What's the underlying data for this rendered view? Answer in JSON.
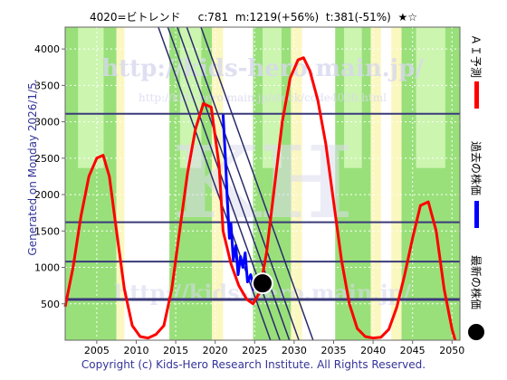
{
  "header": {
    "code_name": "4020=ビトレンド",
    "c_value": "c:781",
    "m_value": "m:1219(+56%)",
    "t_value": "t:381(-51%)",
    "stars": "★☆"
  },
  "generated_label": "Generated on Monday 2026/1/5.",
  "copyright": "Copyright (c) Kids-Hero Research Institute. All Rights Reserved.",
  "watermarks": {
    "main": "http://kids-hero.main.jp/",
    "sub": "http://kids-hero.main.jp/stock/code4020.html",
    "big": "KH"
  },
  "legend": {
    "ai_forecast": "ＡＩ予測",
    "past_price": "過去の株価",
    "latest_price": "最新の株価"
  },
  "colors": {
    "forecast": "#ff0000",
    "past": "#0000ff",
    "latest": "#000000",
    "band_green": "#99e07a",
    "band_light_green": "#ccf5b0",
    "band_yellow": "#fbf7c0",
    "trend_line": "#2a2a6a",
    "h_line": "#3a3a7a",
    "text_blue": "#333399"
  },
  "chart_data": {
    "type": "line",
    "xlim": [
      2001,
      2051
    ],
    "ylim": [
      0,
      4300
    ],
    "x_ticks": [
      2005,
      2010,
      2015,
      2020,
      2025,
      2030,
      2035,
      2040,
      2045,
      2050
    ],
    "y_ticks": [
      500,
      1000,
      1500,
      2000,
      2500,
      3000,
      3500,
      4000
    ],
    "horizontal_lines": [
      3110,
      1620,
      1080,
      560
    ],
    "latest_point": {
      "x": 2026.0,
      "y": 781
    },
    "trend_lines": [
      {
        "x": [
          2012.8,
          2027.0
        ],
        "y": [
          4300,
          0
        ]
      },
      {
        "x": [
          2014.0,
          2028.2
        ],
        "y": [
          4300,
          0
        ]
      },
      {
        "x": [
          2015.2,
          2029.4
        ],
        "y": [
          4300,
          0
        ]
      },
      {
        "x": [
          2016.4,
          2030.6
        ],
        "y": [
          4300,
          0
        ]
      },
      {
        "x": [
          2018.2,
          2032.4
        ],
        "y": [
          4300,
          0
        ]
      }
    ],
    "green_bands": [
      [
        2001,
        2007.5
      ],
      [
        2014.2,
        2019.6
      ],
      [
        2024.8,
        2029.6
      ],
      [
        2035.2,
        2039.7
      ],
      [
        2043.6,
        2051
      ]
    ],
    "yellow_bands": [
      [
        2007.5,
        2008.5
      ],
      [
        2019.6,
        2021.0
      ],
      [
        2029.6,
        2031.0
      ],
      [
        2039.7,
        2041.0
      ],
      [
        2042.3,
        2043.6
      ]
    ],
    "series": [
      {
        "name": "ＡＩ予測",
        "x": [
          2001,
          2002,
          2003,
          2004,
          2005,
          2005.8,
          2006.6,
          2007.5,
          2008.5,
          2009.5,
          2010.5,
          2011.5,
          2012.5,
          2013.5,
          2014.5,
          2015.5,
          2016.5,
          2017.5,
          2018.5,
          2019.5,
          2020.5,
          2021.0,
          2022.0,
          2023.0,
          2024.0,
          2024.8,
          2025.6,
          2026.5,
          2027.5,
          2028.5,
          2029.5,
          2030.5,
          2031.2,
          2032.0,
          2033.0,
          2034.0,
          2035.0,
          2036.0,
          2037.0,
          2038.0,
          2039.0,
          2040.0,
          2041.0,
          2042.0,
          2043.0,
          2044.0,
          2045.0,
          2046.0,
          2047.0,
          2048.0,
          2049.0,
          2050.0,
          2050.4
        ],
        "y": [
          460,
          1000,
          1700,
          2250,
          2500,
          2540,
          2250,
          1500,
          700,
          200,
          50,
          30,
          80,
          200,
          700,
          1500,
          2300,
          2900,
          3250,
          3200,
          2400,
          1500,
          1050,
          750,
          560,
          500,
          650,
          1200,
          2100,
          3000,
          3600,
          3850,
          3880,
          3700,
          3300,
          2700,
          1900,
          1100,
          500,
          160,
          50,
          30,
          40,
          150,
          450,
          900,
          1400,
          1850,
          1900,
          1500,
          700,
          150,
          0
        ]
      },
      {
        "name": "過去の株価",
        "x": [
          2021.0,
          2021.3,
          2021.5,
          2021.8,
          2022.0,
          2022.3,
          2022.6,
          2022.9,
          2023.2,
          2023.5,
          2023.8,
          2024.1,
          2024.5,
          2024.9,
          2025.3,
          2025.7,
          2026.0
        ],
        "y": [
          3100,
          2500,
          2000,
          1400,
          1600,
          1100,
          1300,
          900,
          1150,
          1000,
          1200,
          800,
          900,
          700,
          750,
          650,
          781
        ]
      }
    ]
  }
}
